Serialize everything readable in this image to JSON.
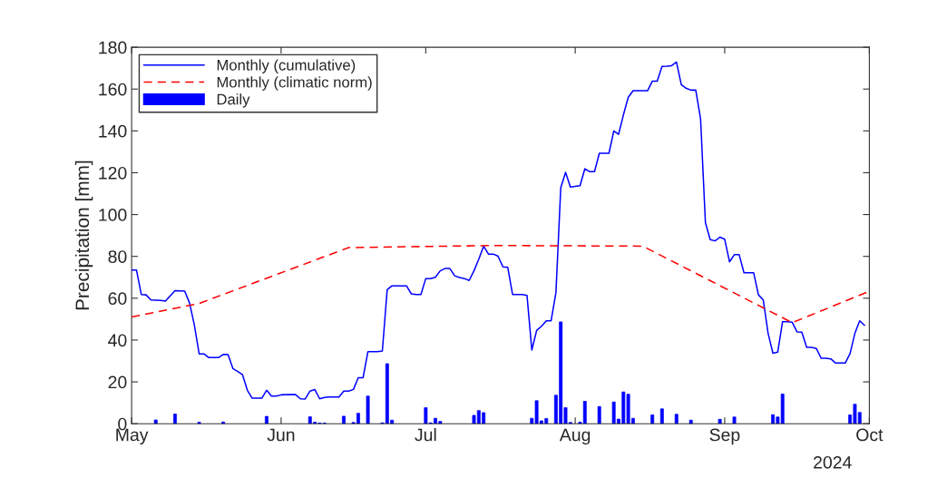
{
  "chart_data": {
    "type": "line",
    "ylabel": "Precipitation [mm]",
    "xlim": [
      "2024-05-01",
      "2024-10-01"
    ],
    "xticks": [
      {
        "value": "2024-05-01",
        "label": "May"
      },
      {
        "value": "2024-06-01",
        "label": "Jun"
      },
      {
        "value": "2024-07-01",
        "label": "Jul"
      },
      {
        "value": "2024-08-01",
        "label": "Aug"
      },
      {
        "value": "2024-09-01",
        "label": "Sep"
      },
      {
        "value": "2024-10-01",
        "label": "Oct"
      }
    ],
    "ylim": [
      0,
      180
    ],
    "yticks": [
      0,
      20,
      40,
      60,
      80,
      100,
      120,
      140,
      160,
      180
    ],
    "grid": false,
    "legend": "top left",
    "annotations": [
      "2024"
    ],
    "series": [
      {
        "name": "Monthly (cumulative)",
        "color": "#0000ff",
        "line_style": "solid",
        "x": [
          "2024-05-01",
          "2024-05-02",
          "2024-05-03",
          "2024-05-04",
          "2024-05-05",
          "2024-05-07",
          "2024-05-08",
          "2024-05-10",
          "2024-05-12",
          "2024-05-13",
          "2024-05-14",
          "2024-05-15",
          "2024-05-16",
          "2024-05-17",
          "2024-05-19",
          "2024-05-20",
          "2024-05-21",
          "2024-05-22",
          "2024-05-23",
          "2024-05-24",
          "2024-05-25",
          "2024-05-26",
          "2024-05-28",
          "2024-05-29",
          "2024-05-30",
          "2024-05-31",
          "2024-06-01",
          "2024-06-03",
          "2024-06-04",
          "2024-06-05",
          "2024-06-06",
          "2024-06-07",
          "2024-06-08",
          "2024-06-09",
          "2024-06-10",
          "2024-06-11",
          "2024-06-13",
          "2024-06-14",
          "2024-06-15",
          "2024-06-16",
          "2024-06-17",
          "2024-06-18",
          "2024-06-19",
          "2024-06-21",
          "2024-06-22",
          "2024-06-23",
          "2024-06-24",
          "2024-06-27",
          "2024-06-28",
          "2024-06-29",
          "2024-06-30",
          "2024-07-01",
          "2024-07-02",
          "2024-07-03",
          "2024-07-04",
          "2024-07-05",
          "2024-07-06",
          "2024-07-07",
          "2024-07-08",
          "2024-07-09",
          "2024-07-10",
          "2024-07-11",
          "2024-07-12",
          "2024-07-13",
          "2024-07-14",
          "2024-07-15",
          "2024-07-16",
          "2024-07-17",
          "2024-07-18",
          "2024-07-19",
          "2024-07-21",
          "2024-07-22",
          "2024-07-23",
          "2024-07-24",
          "2024-07-25",
          "2024-07-26",
          "2024-07-27",
          "2024-07-28",
          "2024-07-29",
          "2024-07-30",
          "2024-07-31",
          "2024-08-01",
          "2024-08-02",
          "2024-08-03",
          "2024-08-04",
          "2024-08-05",
          "2024-08-06",
          "2024-08-08",
          "2024-08-09",
          "2024-08-10",
          "2024-08-11",
          "2024-08-12",
          "2024-08-13",
          "2024-08-16",
          "2024-08-17",
          "2024-08-18",
          "2024-08-19",
          "2024-08-20",
          "2024-08-21",
          "2024-08-22",
          "2024-08-23",
          "2024-08-24",
          "2024-08-25",
          "2024-08-26",
          "2024-08-27",
          "2024-08-28",
          "2024-08-29",
          "2024-08-30",
          "2024-08-31",
          "2024-09-01",
          "2024-09-02",
          "2024-09-03",
          "2024-09-04",
          "2024-09-05",
          "2024-09-07",
          "2024-09-08",
          "2024-09-09",
          "2024-09-10",
          "2024-09-11",
          "2024-09-12",
          "2024-09-13",
          "2024-09-14",
          "2024-09-15",
          "2024-09-16",
          "2024-09-17",
          "2024-09-18",
          "2024-09-19",
          "2024-09-20",
          "2024-09-21",
          "2024-09-22",
          "2024-09-23",
          "2024-09-24",
          "2024-09-26",
          "2024-09-27",
          "2024-09-28",
          "2024-09-29",
          "2024-09-30"
        ],
        "values": [
          73.5,
          73.5,
          61.8,
          61.6,
          59.2,
          58.9,
          58.6,
          63.6,
          63.4,
          57.8,
          47.3,
          33.4,
          33.4,
          31.6,
          31.6,
          33.1,
          33.0,
          26.4,
          25.0,
          23.4,
          16.0,
          12.2,
          12.2,
          16.0,
          13.2,
          13.2,
          13.8,
          14.0,
          13.9,
          11.9,
          11.8,
          15.6,
          16.3,
          11.9,
          12.5,
          12.8,
          12.8,
          15.6,
          15.6,
          16.4,
          22.0,
          22.0,
          34.4,
          34.4,
          34.8,
          64.1,
          65.9,
          65.9,
          62.1,
          61.8,
          61.8,
          69.4,
          69.4,
          70.0,
          73.1,
          74.2,
          74.2,
          70.7,
          69.9,
          69.4,
          68.5,
          73.1,
          78.7,
          84.9,
          81.1,
          81.1,
          80.1,
          75.0,
          74.8,
          61.8,
          61.8,
          61.3,
          35.2,
          44.6,
          46.6,
          49.2,
          49.2,
          62.7,
          112.8,
          120.2,
          113.2,
          113.5,
          113.8,
          121.9,
          120.5,
          120.5,
          129.3,
          129.3,
          140.0,
          138.4,
          147.7,
          156.1,
          159.2,
          159.2,
          163.8,
          163.8,
          170.8,
          170.9,
          171.2,
          172.9,
          162.1,
          160.4,
          159.5,
          159.5,
          145.7,
          96.1,
          88.0,
          87.4,
          89.2,
          88.2,
          77.4,
          80.8,
          80.8,
          72.2,
          72.2,
          61.6,
          59.2,
          43.2,
          33.7,
          34.2,
          48.8,
          48.8,
          48.5,
          43.9,
          43.8,
          36.5,
          36.5,
          36.0,
          31.3,
          31.3,
          31.0,
          29.0,
          29.0,
          33.5,
          43.2,
          49.2,
          47.0
        ]
      },
      {
        "name": "Monthly (climatic norm)",
        "color": "#ff0000",
        "line_style": "dashed",
        "x": [
          "2024-05-01",
          "2024-05-15",
          "2024-06-15",
          "2024-07-15",
          "2024-08-15",
          "2024-09-15",
          "2024-10-01"
        ],
        "values": [
          51,
          57.5,
          84.2,
          85.2,
          84.9,
          48.3,
          63.3
        ]
      },
      {
        "name": "Daily",
        "type": "bar",
        "color": "#0000ff",
        "x": [
          "2024-05-06",
          "2024-05-10",
          "2024-05-15",
          "2024-05-20",
          "2024-05-29",
          "2024-06-07",
          "2024-06-08",
          "2024-06-09",
          "2024-06-10",
          "2024-06-14",
          "2024-06-16",
          "2024-06-17",
          "2024-06-19",
          "2024-06-22",
          "2024-06-23",
          "2024-06-24",
          "2024-07-01",
          "2024-07-02",
          "2024-07-03",
          "2024-07-04",
          "2024-07-11",
          "2024-07-12",
          "2024-07-13",
          "2024-07-23",
          "2024-07-24",
          "2024-07-25",
          "2024-07-26",
          "2024-07-28",
          "2024-07-29",
          "2024-07-30",
          "2024-07-31",
          "2024-08-02",
          "2024-08-03",
          "2024-08-06",
          "2024-08-09",
          "2024-08-10",
          "2024-08-11",
          "2024-08-12",
          "2024-08-13",
          "2024-08-17",
          "2024-08-19",
          "2024-08-22",
          "2024-08-25",
          "2024-08-31",
          "2024-09-03",
          "2024-09-11",
          "2024-09-12",
          "2024-09-13",
          "2024-09-27",
          "2024-09-28",
          "2024-09-29"
        ],
        "values": [
          1.8,
          4.6,
          0.7,
          0.8,
          3.5,
          3.3,
          0.7,
          0.3,
          0.3,
          3.6,
          0.6,
          5.0,
          13.2,
          0.4,
          28.7,
          1.7,
          7.7,
          0.4,
          2.6,
          1.1,
          4.0,
          6.3,
          5.3,
          2.6,
          11.0,
          1.4,
          2.5,
          13.6,
          48.7,
          7.7,
          0.6,
          0.7,
          10.7,
          8.2,
          10.4,
          2.2,
          15.2,
          14.1,
          2.6,
          4.2,
          7.1,
          4.5,
          1.7,
          2.1,
          3.2,
          4.3,
          3.2,
          14.2,
          4.2,
          9.3,
          5.4
        ]
      }
    ]
  }
}
